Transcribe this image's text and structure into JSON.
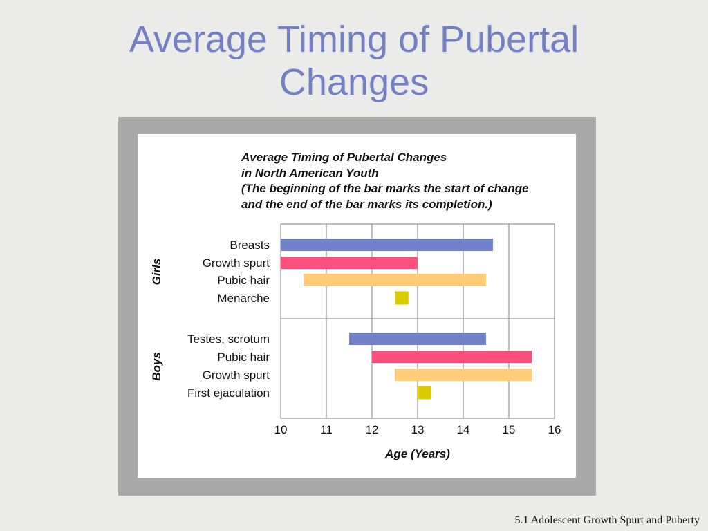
{
  "slide": {
    "title_line1": "Average Timing of Pubertal",
    "title_line2": "Changes",
    "footer": "5.1 Adolescent Growth Spurt and Puberty"
  },
  "colors": {
    "title": "#7381c4",
    "blue": "#7181c9",
    "pink": "#fc4f7e",
    "peach": "#ffcd78",
    "yellow": "#dbcc00"
  },
  "chart_data": {
    "type": "bar",
    "orientation": "horizontal-range",
    "title_lines": [
      "Average Timing of Pubertal Changes",
      "in North American Youth",
      "(The beginning of the bar marks the start of change",
      "and the end of the bar marks its completion.)"
    ],
    "xlabel": "Age (Years)",
    "xlim": [
      10,
      16
    ],
    "xticks": [
      10,
      11,
      12,
      13,
      14,
      15,
      16
    ],
    "grid": true,
    "groups": [
      {
        "name": "Girls",
        "items": [
          {
            "label": "Breasts",
            "start": 10.0,
            "end": 14.65,
            "color": "#7181c9"
          },
          {
            "label": "Growth spurt",
            "start": 10.0,
            "end": 13.0,
            "color": "#fc4f7e"
          },
          {
            "label": "Pubic hair",
            "start": 10.5,
            "end": 14.5,
            "color": "#ffcd78"
          },
          {
            "label": "Menarche",
            "start": 12.5,
            "end": 12.8,
            "color": "#dbcc00"
          }
        ]
      },
      {
        "name": "Boys",
        "items": [
          {
            "label": "Testes, scrotum",
            "start": 11.5,
            "end": 14.5,
            "color": "#7181c9"
          },
          {
            "label": "Pubic hair",
            "start": 12.0,
            "end": 15.5,
            "color": "#fc4f7e"
          },
          {
            "label": "Growth spurt",
            "start": 12.5,
            "end": 15.5,
            "color": "#ffcd78"
          },
          {
            "label": "First ejaculation",
            "start": 13.0,
            "end": 13.3,
            "color": "#dbcc00"
          }
        ]
      }
    ]
  }
}
